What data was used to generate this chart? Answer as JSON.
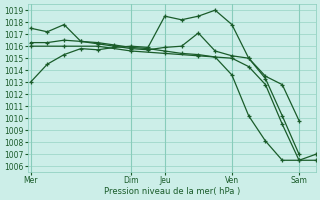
{
  "bg_color": "#cceee8",
  "grid_color": "#88ccbb",
  "line_color": "#1a5c2a",
  "ylim": [
    1005.5,
    1019.5
  ],
  "yticks": [
    1006,
    1007,
    1008,
    1009,
    1010,
    1011,
    1012,
    1013,
    1014,
    1015,
    1016,
    1017,
    1018,
    1019
  ],
  "xlabel": "Pression niveau de la mer( hPa )",
  "xtick_labels": [
    "Mer",
    "Dim",
    "Jeu",
    "Ven",
    "Sam"
  ],
  "xtick_positions": [
    0,
    36,
    48,
    72,
    96
  ],
  "xlim": [
    -1,
    102
  ],
  "vlines": [
    0,
    36,
    48,
    72,
    96
  ],
  "lines": {
    "line1": {
      "x": [
        0,
        6,
        12,
        18,
        24,
        30,
        36,
        42,
        48,
        54,
        60,
        66,
        72,
        78,
        84,
        90,
        96
      ],
      "y": [
        1013.0,
        1014.5,
        1015.3,
        1015.8,
        1015.7,
        1015.9,
        1016.0,
        1015.9,
        1018.5,
        1018.2,
        1018.5,
        1019.0,
        1017.8,
        1015.0,
        1013.5,
        1012.8,
        1009.8
      ]
    },
    "line2": {
      "x": [
        0,
        6,
        12,
        18,
        24,
        30,
        36,
        42,
        48,
        54,
        60,
        66,
        72,
        78,
        84,
        90,
        96
      ],
      "y": [
        1016.3,
        1016.3,
        1016.5,
        1016.4,
        1016.2,
        1016.0,
        1015.8,
        1015.7,
        1015.9,
        1016.0,
        1017.1,
        1015.6,
        1015.2,
        1015.0,
        1013.3,
        1010.2,
        1007.0
      ]
    },
    "line3": {
      "x": [
        0,
        12,
        24,
        36,
        48,
        60,
        72,
        78,
        84,
        90,
        96,
        102
      ],
      "y": [
        1016.0,
        1016.0,
        1016.0,
        1015.6,
        1015.4,
        1015.2,
        1015.0,
        1014.3,
        1012.8,
        1009.5,
        1006.5,
        1006.5
      ]
    },
    "line4": {
      "x": [
        0,
        6,
        12,
        18,
        24,
        30,
        36,
        42,
        48,
        54,
        60,
        66,
        72,
        78,
        84,
        90,
        96,
        102
      ],
      "y": [
        1017.5,
        1017.2,
        1017.8,
        1016.4,
        1016.3,
        1016.1,
        1015.9,
        1015.8,
        1015.6,
        1015.4,
        1015.3,
        1015.1,
        1013.6,
        1010.2,
        1008.1,
        1006.5,
        1006.5,
        1007.0
      ]
    }
  }
}
